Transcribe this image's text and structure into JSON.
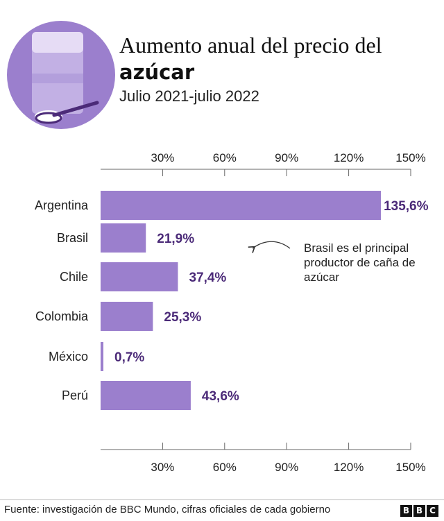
{
  "header": {
    "title_plain": "Aumento anual del precio del",
    "title_bold": "azúcar",
    "subtitle": "Julio 2021-julio 2022"
  },
  "annotation": {
    "lines": [
      "Brasil es el principal",
      "productor de caña de",
      "azúcar"
    ]
  },
  "footer": {
    "source": "Fuente: investigación de BBC Mundo, cifras oficiales de cada gobierno",
    "logo_letters": [
      "B",
      "B",
      "C"
    ]
  },
  "colors": {
    "bar": "#9b7fcd",
    "value_text": "#4b2a78",
    "icon_circle": "#9b7fcd",
    "axis": "#666666"
  },
  "chart_data": {
    "type": "bar",
    "orientation": "horizontal",
    "categories": [
      "Argentina",
      "Brasil",
      "Chile",
      "Colombia",
      "México",
      "Perú"
    ],
    "values": [
      135.6,
      21.9,
      37.4,
      25.3,
      0.7,
      43.6
    ],
    "value_labels": [
      "135,6%",
      "21,9%",
      "37,4%",
      "25,3%",
      "0,7%",
      "43,6%"
    ],
    "xticks": [
      30,
      60,
      90,
      120,
      150
    ],
    "xtick_labels": [
      "30%",
      "60%",
      "90%",
      "120%",
      "150%"
    ],
    "xlim": [
      0,
      150
    ],
    "title": "Aumento anual del precio del azúcar",
    "subtitle": "Julio 2021-julio 2022",
    "grid": false,
    "axis_positions": [
      "top",
      "bottom"
    ]
  }
}
